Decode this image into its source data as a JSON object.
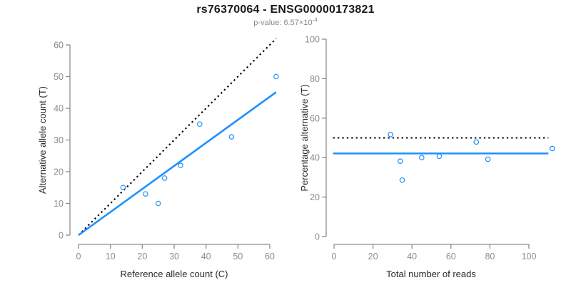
{
  "header": {
    "title": "rs76370064 - ENSG00000173821",
    "pvalue_prefix": "p-value: 6.57×10",
    "pvalue_exponent": "-4"
  },
  "colors": {
    "accent_blue": "#1E90FF",
    "line_black": "#000000",
    "axis_gray": "#8c8c8c",
    "tick_label_gray": "#8c8c8c",
    "axis_title_color": "#2b2b2b"
  },
  "chart_data": [
    {
      "type": "scatter",
      "title": "",
      "xlabel": "Reference allele count (C)",
      "ylabel": "Alternative allele count (T)",
      "xlim": [
        0,
        62
      ],
      "ylim": [
        0,
        62
      ],
      "xticks": [
        0,
        10,
        20,
        30,
        40,
        50,
        60
      ],
      "yticks": [
        0,
        10,
        20,
        30,
        40,
        50,
        60
      ],
      "grid": false,
      "legend": false,
      "points": [
        [
          14,
          15
        ],
        [
          21,
          13
        ],
        [
          25,
          10
        ],
        [
          27,
          18
        ],
        [
          32,
          22
        ],
        [
          38,
          35
        ],
        [
          48,
          31
        ],
        [
          62,
          50
        ]
      ],
      "lines": [
        {
          "name": "identity-line",
          "style": "dotted",
          "color_key": "line_black",
          "x": [
            0,
            62
          ],
          "y": [
            0,
            62
          ]
        },
        {
          "name": "regression-line",
          "style": "solid",
          "color_key": "accent_blue",
          "x": [
            0,
            62
          ],
          "y": [
            0,
            45.1
          ]
        }
      ]
    },
    {
      "type": "scatter",
      "title": "",
      "xlabel": "Total number of reads",
      "ylabel": "Percentage alternative (T)",
      "xlim": [
        0,
        113
      ],
      "ylim": [
        0,
        100
      ],
      "xticks": [
        0,
        20,
        40,
        60,
        80,
        100
      ],
      "yticks": [
        0,
        20,
        40,
        60,
        80,
        100
      ],
      "grid": false,
      "legend": false,
      "points": [
        [
          29,
          51.7
        ],
        [
          34,
          38.2
        ],
        [
          35,
          28.6
        ],
        [
          45,
          40.0
        ],
        [
          54,
          40.7
        ],
        [
          73,
          47.9
        ],
        [
          79,
          39.2
        ],
        [
          112,
          44.6
        ]
      ],
      "lines": [
        {
          "name": "fifty-percent-line",
          "style": "dotted",
          "color_key": "line_black",
          "x": [
            -0.5,
            110
          ],
          "y": [
            50,
            50
          ]
        },
        {
          "name": "mean-percentage-line",
          "style": "solid",
          "color_key": "accent_blue",
          "x": [
            -0.5,
            110
          ],
          "y": [
            42.1,
            42.1
          ]
        }
      ]
    }
  ]
}
